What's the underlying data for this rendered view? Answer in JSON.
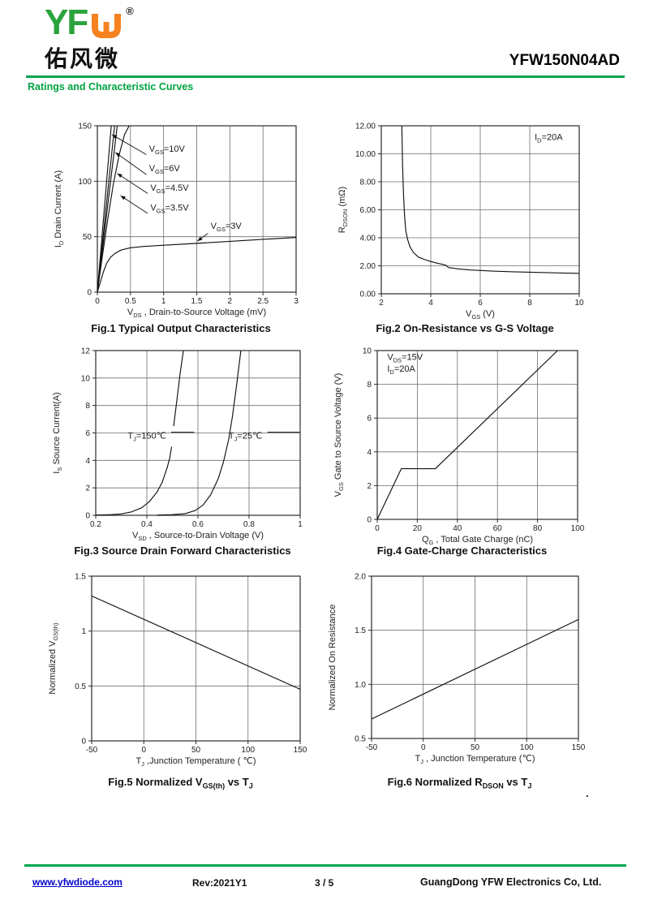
{
  "page": {
    "part_number": "YFW150N04AD",
    "section_title": "Ratings and Characteristic Curves",
    "accent_green": "#00a651"
  },
  "header": {
    "logo_brand": "YF",
    "logo_glyph": "shu-bracket-icon",
    "logo_reg": "®",
    "logo_chinese": "佑风微",
    "logo_green": "#2aa33c",
    "logo_orange": "#f5821f"
  },
  "footer": {
    "website": "www.yfwdiode.com",
    "rev": "Rev:2021Y1",
    "page_num": "3 / 5",
    "company": "GuangDong YFW Electronics Co, Ltd.",
    "link_color": "#0000cc"
  },
  "stray_dot": ".",
  "chart_data": [
    {
      "id": "fig1",
      "type": "line",
      "caption": "Fig.1 Typical Output Characteristics",
      "xlabel": "V~DS~ , Drain-to-Source Voltage (mV)",
      "ylabel": "I~D~ Drain Current (A)",
      "xlim": [
        0,
        3
      ],
      "ylim": [
        0,
        150
      ],
      "grid": true,
      "legend": "none",
      "xticks": [
        {
          "v": 0,
          "l": "0"
        },
        {
          "v": 0.5,
          "l": "0.5"
        },
        {
          "v": 1,
          "l": "1"
        },
        {
          "v": 1.5,
          "l": "1.5"
        },
        {
          "v": 2,
          "l": "2"
        },
        {
          "v": 2.5,
          "l": "2.5"
        },
        {
          "v": 3,
          "l": "3"
        }
      ],
      "yticks": [
        {
          "v": 0,
          "l": "0"
        },
        {
          "v": 50,
          "l": "50"
        },
        {
          "v": 100,
          "l": "100"
        },
        {
          "v": 150,
          "l": "150"
        }
      ],
      "series": [
        {
          "name": "VGS=10V",
          "points": [
            [
              0,
              0
            ],
            [
              0.21,
              150
            ]
          ]
        },
        {
          "name": "VGS=6V",
          "points": [
            [
              0,
              0
            ],
            [
              0.26,
              150
            ]
          ]
        },
        {
          "name": "VGS=4.5V",
          "points": [
            [
              0,
              0
            ],
            [
              0.3,
              150
            ]
          ]
        },
        {
          "name": "VGS=3.5V",
          "points": [
            [
              0,
              0
            ],
            [
              0.07,
              30
            ],
            [
              0.15,
              63
            ],
            [
              0.24,
              97
            ],
            [
              0.33,
              124
            ],
            [
              0.41,
              142
            ],
            [
              0.48,
              150
            ]
          ]
        },
        {
          "name": "VGS=3V",
          "points": [
            [
              0,
              0
            ],
            [
              0.04,
              8
            ],
            [
              0.09,
              18
            ],
            [
              0.14,
              26
            ],
            [
              0.2,
              31.5
            ],
            [
              0.28,
              35.5
            ],
            [
              0.36,
              38
            ],
            [
              0.5,
              40
            ],
            [
              0.7,
              41.2
            ],
            [
              1,
              42.3
            ],
            [
              1.5,
              44
            ],
            [
              2,
              45.8
            ],
            [
              2.5,
              47.6
            ],
            [
              3,
              49.3
            ]
          ]
        }
      ],
      "annotations": [
        {
          "t": "V~GS~=10V",
          "x": 0.78,
          "y": 126.5
        },
        {
          "t": "V~GS~=6V",
          "x": 0.78,
          "y": 109
        },
        {
          "t": "V~GS~=4.5V",
          "x": 0.8,
          "y": 91.5
        },
        {
          "t": "V~GS~=3.5V",
          "x": 0.8,
          "y": 73.5
        },
        {
          "t": "V~GS~=3V",
          "x": 1.71,
          "y": 57
        }
      ],
      "arrows": [
        {
          "x1": 0.74,
          "y1": 124,
          "x2": 0.22,
          "y2": 142
        },
        {
          "x1": 0.74,
          "y1": 106,
          "x2": 0.27,
          "y2": 126
        },
        {
          "x1": 0.76,
          "y1": 89,
          "x2": 0.3,
          "y2": 107
        },
        {
          "x1": 0.76,
          "y1": 71,
          "x2": 0.35,
          "y2": 87
        },
        {
          "x1": 1.67,
          "y1": 53,
          "x2": 1.51,
          "y2": 46
        }
      ],
      "lines": []
    },
    {
      "id": "fig2",
      "type": "line",
      "caption": "Fig.2 On-Resistance vs G-S Voltage",
      "xlabel": "V~GS~ (V)",
      "ylabel": "R~DSON~ (mΩ)",
      "xlim": [
        2,
        10
      ],
      "ylim": [
        0,
        12
      ],
      "grid": true,
      "legend": "none",
      "xticks": [
        {
          "v": 2,
          "l": "2"
        },
        {
          "v": 4,
          "l": "4"
        },
        {
          "v": 6,
          "l": "6"
        },
        {
          "v": 8,
          "l": "8"
        },
        {
          "v": 10,
          "l": "10"
        }
      ],
      "yticks": [
        {
          "v": 0,
          "l": "0.00"
        },
        {
          "v": 2,
          "l": "2.00"
        },
        {
          "v": 4,
          "l": "4.00"
        },
        {
          "v": 6,
          "l": "6.00"
        },
        {
          "v": 8,
          "l": "8.00"
        },
        {
          "v": 10,
          "l": "10.00"
        },
        {
          "v": 12,
          "l": "12.00"
        }
      ],
      "series": [
        {
          "name": "RDSON vs VGS at ID=20A",
          "points": [
            [
              2.83,
              12
            ],
            [
              2.86,
              9.2
            ],
            [
              2.9,
              7
            ],
            [
              2.94,
              5.6
            ],
            [
              2.99,
              4.5
            ],
            [
              3.06,
              3.9
            ],
            [
              3.16,
              3.35
            ],
            [
              3.3,
              2.95
            ],
            [
              3.5,
              2.62
            ],
            [
              3.75,
              2.45
            ],
            [
              4.0,
              2.3
            ],
            [
              4.3,
              2.17
            ],
            [
              4.6,
              2.05
            ],
            [
              4.72,
              1.87
            ],
            [
              5.1,
              1.78
            ],
            [
              5.6,
              1.7
            ],
            [
              6.5,
              1.62
            ],
            [
              7.5,
              1.56
            ],
            [
              8.5,
              1.52
            ],
            [
              9.3,
              1.48
            ],
            [
              10,
              1.46
            ]
          ]
        }
      ],
      "annotations": [
        {
          "t": "I~D~=20A",
          "x": 8.2,
          "y": 11.0
        }
      ],
      "arrows": [],
      "lines": []
    },
    {
      "id": "fig3",
      "type": "line",
      "caption": "Fig.3 Source Drain Forward Characteristics",
      "xlabel": "V~SD~ , Source-to-Drain Voltage (V)",
      "ylabel": "I~S~ Source Current(A)",
      "xlim": [
        0.2,
        1
      ],
      "ylim": [
        0,
        12
      ],
      "grid": true,
      "legend": "none",
      "xticks": [
        {
          "v": 0.2,
          "l": "0.2"
        },
        {
          "v": 0.4,
          "l": "0.4"
        },
        {
          "v": 0.6,
          "l": "0.6"
        },
        {
          "v": 0.8,
          "l": "0.8"
        },
        {
          "v": 1,
          "l": "1"
        }
      ],
      "yticks": [
        {
          "v": 0,
          "l": "0"
        },
        {
          "v": 2,
          "l": "2"
        },
        {
          "v": 4,
          "l": "4"
        },
        {
          "v": 6,
          "l": "6"
        },
        {
          "v": 8,
          "l": "8"
        },
        {
          "v": 10,
          "l": "10"
        },
        {
          "v": 12,
          "l": "12"
        }
      ],
      "series": [
        {
          "name": "TJ=150C lower",
          "points": [
            [
              0.2,
              0.02
            ],
            [
              0.26,
              0.05
            ],
            [
              0.3,
              0.1
            ],
            [
              0.34,
              0.25
            ],
            [
              0.38,
              0.55
            ],
            [
              0.41,
              1.0
            ],
            [
              0.44,
              1.7
            ],
            [
              0.46,
              2.4
            ],
            [
              0.48,
              3.5
            ],
            [
              0.49,
              4.2
            ],
            [
              0.497,
              5.0
            ]
          ]
        },
        {
          "name": "TJ=150C upper",
          "points": [
            [
              0.505,
              6.5
            ],
            [
              0.515,
              8.0
            ],
            [
              0.53,
              10.3
            ],
            [
              0.543,
              12
            ]
          ]
        },
        {
          "name": "TJ=25C",
          "points": [
            [
              0.44,
              0.02
            ],
            [
              0.5,
              0.05
            ],
            [
              0.55,
              0.12
            ],
            [
              0.59,
              0.35
            ],
            [
              0.62,
              0.75
            ],
            [
              0.65,
              1.5
            ],
            [
              0.68,
              2.7
            ],
            [
              0.7,
              3.9
            ],
            [
              0.72,
              5.5
            ],
            [
              0.735,
              7.2
            ],
            [
              0.75,
              9.3
            ],
            [
              0.762,
              11.1
            ],
            [
              0.768,
              12
            ]
          ]
        }
      ],
      "annotations": [
        {
          "t": "T~J~=150℃",
          "x": 0.325,
          "y": 5.6
        },
        {
          "t": "T~J~=25℃",
          "x": 0.72,
          "y": 5.6
        }
      ],
      "arrows": [],
      "lines": [
        {
          "x1": 0.495,
          "y1": 6.05,
          "x2": 0.585,
          "y2": 6.05
        },
        {
          "x1": 0.872,
          "y1": 6.05,
          "x2": 0.998,
          "y2": 6.05
        }
      ]
    },
    {
      "id": "fig4",
      "type": "line",
      "caption": "Fig.4 Gate-Charge Characteristics",
      "xlabel": "Q~G~ , Total Gate Charge (nC)",
      "ylabel": "V~GS~ Gate to Source Voltage (V)",
      "xlim": [
        0,
        100
      ],
      "ylim": [
        0,
        10
      ],
      "grid": true,
      "legend": "none",
      "xticks": [
        {
          "v": 0,
          "l": "0"
        },
        {
          "v": 20,
          "l": "20"
        },
        {
          "v": 40,
          "l": "40"
        },
        {
          "v": 60,
          "l": "60"
        },
        {
          "v": 80,
          "l": "80"
        },
        {
          "v": 100,
          "l": "100"
        }
      ],
      "yticks": [
        {
          "v": 0,
          "l": "0"
        },
        {
          "v": 2,
          "l": "2"
        },
        {
          "v": 4,
          "l": "4"
        },
        {
          "v": 6,
          "l": "6"
        },
        {
          "v": 8,
          "l": "8"
        },
        {
          "v": 10,
          "l": "10"
        }
      ],
      "series": [
        {
          "name": "VGS vs QG at VDS=15V ID=20A",
          "points": [
            [
              0,
              0
            ],
            [
              12,
              3
            ],
            [
              29,
              3
            ],
            [
              90,
              10
            ]
          ]
        }
      ],
      "annotations": [
        {
          "t": "V~DS~=15V",
          "x": 5,
          "y": 9.45
        },
        {
          "t": "I~D~=20A",
          "x": 5,
          "y": 8.75
        }
      ],
      "arrows": [],
      "lines": []
    },
    {
      "id": "fig5",
      "type": "line",
      "caption": "Fig.5 Normalized V~GS(th)~ vs T~J~",
      "xlabel": "T~J~ ,Junction Temperature ( ℃)",
      "ylabel": "Normalized V~GS(th)~",
      "xlim": [
        -50,
        150
      ],
      "ylim": [
        0,
        1.5
      ],
      "grid": true,
      "legend": "none",
      "xticks": [
        {
          "v": -50,
          "l": "-50"
        },
        {
          "v": 0,
          "l": "0"
        },
        {
          "v": 50,
          "l": "50"
        },
        {
          "v": 100,
          "l": "100"
        },
        {
          "v": 150,
          "l": "150"
        }
      ],
      "yticks": [
        {
          "v": 0,
          "l": "0"
        },
        {
          "v": 0.5,
          "l": "0.5"
        },
        {
          "v": 1,
          "l": "1"
        },
        {
          "v": 1.5,
          "l": "1.5"
        }
      ],
      "series": [
        {
          "name": "Normalized VGS(th)",
          "points": [
            [
              -50,
              1.32
            ],
            [
              150,
              0.47
            ]
          ]
        }
      ],
      "annotations": [],
      "arrows": [],
      "lines": []
    },
    {
      "id": "fig6",
      "type": "line",
      "caption": "Fig.6 Normalized R~DSON~ vs T~J~",
      "xlabel": "T~J~ , Junction Temperature (℃)",
      "ylabel": "Normalized On Resistance",
      "xlim": [
        -50,
        150
      ],
      "ylim": [
        0.5,
        2
      ],
      "grid": true,
      "legend": "none",
      "xticks": [
        {
          "v": -50,
          "l": "-50"
        },
        {
          "v": 0,
          "l": "0"
        },
        {
          "v": 50,
          "l": "50"
        },
        {
          "v": 100,
          "l": "100"
        },
        {
          "v": 150,
          "l": "150"
        }
      ],
      "yticks": [
        {
          "v": 0.5,
          "l": "0.5"
        },
        {
          "v": 1,
          "l": "1.0"
        },
        {
          "v": 1.5,
          "l": "1.5"
        },
        {
          "v": 2,
          "l": "2.0"
        }
      ],
      "series": [
        {
          "name": "Normalized RDSON",
          "points": [
            [
              -50,
              0.68
            ],
            [
              150,
              1.6
            ]
          ]
        }
      ],
      "annotations": [],
      "arrows": [],
      "lines": []
    }
  ]
}
